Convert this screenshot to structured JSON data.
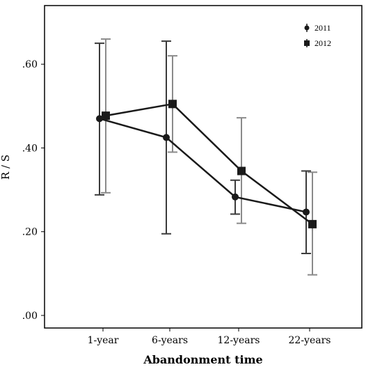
{
  "chart_data": {
    "type": "line",
    "xlabel": "Abandonment time",
    "ylabel": "R / S",
    "categories": [
      "1-year",
      "6-years",
      "12-years",
      "22-years"
    ],
    "ylim": [
      -0.03,
      0.74
    ],
    "yticks": [
      0.0,
      0.2,
      0.4,
      0.6
    ],
    "ytick_labels": [
      ".00",
      ".20",
      ".40",
      ".60"
    ],
    "grid": false,
    "legend_position": "top-right",
    "series": [
      {
        "name": "2011",
        "marker": "circle",
        "color": "#1a1a1a",
        "errorbar_color": "#3a3a3a",
        "values": [
          0.47,
          0.425,
          0.283,
          0.247
        ],
        "err_low": [
          0.288,
          0.195,
          0.242,
          0.148
        ],
        "err_high": [
          0.65,
          0.655,
          0.323,
          0.345
        ]
      },
      {
        "name": "2012",
        "marker": "square",
        "color": "#1a1a1a",
        "errorbar_color": "#8a8a8a",
        "values": [
          0.477,
          0.505,
          0.345,
          0.218
        ],
        "err_low": [
          0.293,
          0.39,
          0.22,
          0.097
        ],
        "err_high": [
          0.66,
          0.62,
          0.472,
          0.342
        ]
      }
    ]
  }
}
